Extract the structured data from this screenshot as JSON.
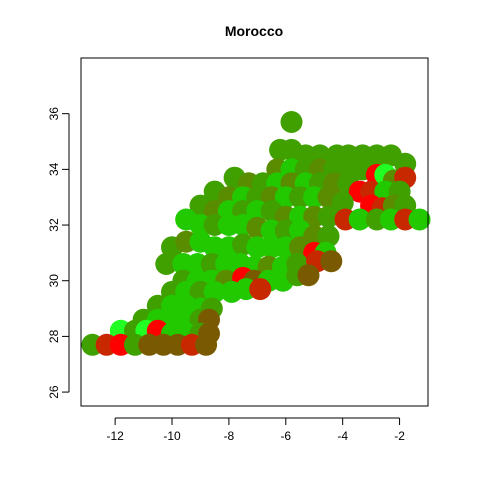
{
  "chart_data": {
    "type": "scatter",
    "title": "Morocco",
    "xlabel": "",
    "ylabel": "",
    "xlim": [
      -13.2,
      -1.0
    ],
    "ylim": [
      25.5,
      38.0
    ],
    "x_ticks": [
      -12,
      -10,
      -8,
      -6,
      -4,
      -2
    ],
    "y_ticks": [
      26,
      28,
      30,
      32,
      34,
      36
    ],
    "grid": false,
    "point_shape": "filled circle",
    "colors": {
      "red": "#ff0000",
      "dark_red": "#c82800",
      "brown": "#7a5a00",
      "olive": "#5a8c00",
      "green": "#3fa000",
      "bright_green": "#22c800",
      "lime": "#22ff22"
    },
    "points": [
      {
        "x": -5.8,
        "y": 35.7,
        "c": "green"
      },
      {
        "x": -6.2,
        "y": 34.7,
        "c": "green"
      },
      {
        "x": -5.8,
        "y": 34.7,
        "c": "green"
      },
      {
        "x": -5.3,
        "y": 34.5,
        "c": "green"
      },
      {
        "x": -4.8,
        "y": 34.5,
        "c": "green"
      },
      {
        "x": -4.2,
        "y": 34.5,
        "c": "green"
      },
      {
        "x": -3.8,
        "y": 34.5,
        "c": "green"
      },
      {
        "x": -3.3,
        "y": 34.5,
        "c": "green"
      },
      {
        "x": -2.8,
        "y": 34.5,
        "c": "green"
      },
      {
        "x": -2.3,
        "y": 34.5,
        "c": "green"
      },
      {
        "x": -1.8,
        "y": 34.2,
        "c": "green"
      },
      {
        "x": -6.3,
        "y": 34.0,
        "c": "olive"
      },
      {
        "x": -5.8,
        "y": 34.0,
        "c": "bright_green"
      },
      {
        "x": -5.3,
        "y": 34.0,
        "c": "green"
      },
      {
        "x": -4.8,
        "y": 34.0,
        "c": "olive"
      },
      {
        "x": -4.3,
        "y": 34.0,
        "c": "green"
      },
      {
        "x": -3.8,
        "y": 34.0,
        "c": "green"
      },
      {
        "x": -3.3,
        "y": 34.0,
        "c": "green"
      },
      {
        "x": -2.8,
        "y": 33.8,
        "c": "red"
      },
      {
        "x": -2.5,
        "y": 33.8,
        "c": "lime"
      },
      {
        "x": -2.2,
        "y": 33.6,
        "c": "olive"
      },
      {
        "x": -1.8,
        "y": 33.7,
        "c": "dark_red"
      },
      {
        "x": -7.8,
        "y": 33.7,
        "c": "green"
      },
      {
        "x": -7.3,
        "y": 33.5,
        "c": "olive"
      },
      {
        "x": -6.8,
        "y": 33.5,
        "c": "green"
      },
      {
        "x": -6.3,
        "y": 33.5,
        "c": "bright_green"
      },
      {
        "x": -5.8,
        "y": 33.5,
        "c": "olive"
      },
      {
        "x": -5.3,
        "y": 33.5,
        "c": "bright_green"
      },
      {
        "x": -4.8,
        "y": 33.5,
        "c": "green"
      },
      {
        "x": -4.3,
        "y": 33.5,
        "c": "olive"
      },
      {
        "x": -3.8,
        "y": 33.5,
        "c": "green"
      },
      {
        "x": -3.4,
        "y": 33.2,
        "c": "red"
      },
      {
        "x": -3.0,
        "y": 33.2,
        "c": "dark_red"
      },
      {
        "x": -2.5,
        "y": 33.2,
        "c": "bright_green"
      },
      {
        "x": -2.0,
        "y": 33.2,
        "c": "green"
      },
      {
        "x": -8.5,
        "y": 33.2,
        "c": "green"
      },
      {
        "x": -8.0,
        "y": 33.0,
        "c": "olive"
      },
      {
        "x": -7.5,
        "y": 33.0,
        "c": "bright_green"
      },
      {
        "x": -7.0,
        "y": 33.0,
        "c": "green"
      },
      {
        "x": -6.5,
        "y": 33.0,
        "c": "olive"
      },
      {
        "x": -6.0,
        "y": 33.0,
        "c": "bright_green"
      },
      {
        "x": -5.5,
        "y": 33.0,
        "c": "green"
      },
      {
        "x": -5.0,
        "y": 33.0,
        "c": "bright_green"
      },
      {
        "x": -4.5,
        "y": 33.0,
        "c": "olive"
      },
      {
        "x": -4.0,
        "y": 32.8,
        "c": "green"
      },
      {
        "x": -3.0,
        "y": 32.7,
        "c": "red"
      },
      {
        "x": -2.6,
        "y": 32.6,
        "c": "dark_red"
      },
      {
        "x": -2.2,
        "y": 32.7,
        "c": "olive"
      },
      {
        "x": -1.8,
        "y": 32.7,
        "c": "green"
      },
      {
        "x": -9.0,
        "y": 32.7,
        "c": "green"
      },
      {
        "x": -8.5,
        "y": 32.5,
        "c": "olive"
      },
      {
        "x": -8.0,
        "y": 32.5,
        "c": "bright_green"
      },
      {
        "x": -7.5,
        "y": 32.5,
        "c": "green"
      },
      {
        "x": -7.0,
        "y": 32.5,
        "c": "bright_green"
      },
      {
        "x": -6.5,
        "y": 32.5,
        "c": "green"
      },
      {
        "x": -6.0,
        "y": 32.3,
        "c": "olive"
      },
      {
        "x": -5.5,
        "y": 32.3,
        "c": "bright_green"
      },
      {
        "x": -5.0,
        "y": 32.3,
        "c": "olive"
      },
      {
        "x": -4.5,
        "y": 32.3,
        "c": "green"
      },
      {
        "x": -3.9,
        "y": 32.2,
        "c": "dark_red"
      },
      {
        "x": -3.4,
        "y": 32.2,
        "c": "bright_green"
      },
      {
        "x": -2.8,
        "y": 32.2,
        "c": "green"
      },
      {
        "x": -2.3,
        "y": 32.2,
        "c": "bright_green"
      },
      {
        "x": -1.8,
        "y": 32.2,
        "c": "dark_red"
      },
      {
        "x": -1.3,
        "y": 32.2,
        "c": "bright_green"
      },
      {
        "x": -9.5,
        "y": 32.2,
        "c": "bright_green"
      },
      {
        "x": -9.0,
        "y": 32.0,
        "c": "bright_green"
      },
      {
        "x": -8.5,
        "y": 32.0,
        "c": "green"
      },
      {
        "x": -8.0,
        "y": 32.0,
        "c": "bright_green"
      },
      {
        "x": -7.5,
        "y": 32.0,
        "c": "bright_green"
      },
      {
        "x": -7.0,
        "y": 31.9,
        "c": "olive"
      },
      {
        "x": -6.5,
        "y": 31.8,
        "c": "bright_green"
      },
      {
        "x": -6.0,
        "y": 31.8,
        "c": "green"
      },
      {
        "x": -5.5,
        "y": 31.8,
        "c": "bright_green"
      },
      {
        "x": -5.0,
        "y": 31.6,
        "c": "olive"
      },
      {
        "x": -4.5,
        "y": 31.6,
        "c": "green"
      },
      {
        "x": -10.0,
        "y": 31.2,
        "c": "green"
      },
      {
        "x": -9.5,
        "y": 31.4,
        "c": "olive"
      },
      {
        "x": -9.0,
        "y": 31.4,
        "c": "bright_green"
      },
      {
        "x": -8.5,
        "y": 31.2,
        "c": "bright_green"
      },
      {
        "x": -8.0,
        "y": 31.2,
        "c": "bright_green"
      },
      {
        "x": -7.5,
        "y": 31.3,
        "c": "green"
      },
      {
        "x": -7.0,
        "y": 31.2,
        "c": "bright_green"
      },
      {
        "x": -6.5,
        "y": 31.2,
        "c": "bright_green"
      },
      {
        "x": -6.0,
        "y": 31.2,
        "c": "bright_green"
      },
      {
        "x": -5.5,
        "y": 31.2,
        "c": "olive"
      },
      {
        "x": -5.0,
        "y": 31.0,
        "c": "red"
      },
      {
        "x": -4.6,
        "y": 31.0,
        "c": "bright_green"
      },
      {
        "x": -10.2,
        "y": 30.6,
        "c": "green"
      },
      {
        "x": -9.6,
        "y": 30.6,
        "c": "bright_green"
      },
      {
        "x": -9.1,
        "y": 30.6,
        "c": "bright_green"
      },
      {
        "x": -8.6,
        "y": 30.6,
        "c": "green"
      },
      {
        "x": -8.1,
        "y": 30.6,
        "c": "bright_green"
      },
      {
        "x": -7.6,
        "y": 30.6,
        "c": "bright_green"
      },
      {
        "x": -7.1,
        "y": 30.5,
        "c": "bright_green"
      },
      {
        "x": -6.6,
        "y": 30.5,
        "c": "olive"
      },
      {
        "x": -6.1,
        "y": 30.5,
        "c": "bright_green"
      },
      {
        "x": -5.6,
        "y": 30.6,
        "c": "green"
      },
      {
        "x": -4.9,
        "y": 30.7,
        "c": "dark_red"
      },
      {
        "x": -4.4,
        "y": 30.7,
        "c": "brown"
      },
      {
        "x": -9.6,
        "y": 30.0,
        "c": "green"
      },
      {
        "x": -9.1,
        "y": 30.0,
        "c": "bright_green"
      },
      {
        "x": -8.6,
        "y": 30.0,
        "c": "bright_green"
      },
      {
        "x": -8.1,
        "y": 30.0,
        "c": "olive"
      },
      {
        "x": -7.5,
        "y": 30.1,
        "c": "red"
      },
      {
        "x": -7.1,
        "y": 30.0,
        "c": "brown"
      },
      {
        "x": -6.6,
        "y": 30.0,
        "c": "bright_green"
      },
      {
        "x": -6.1,
        "y": 30.0,
        "c": "bright_green"
      },
      {
        "x": -5.6,
        "y": 30.2,
        "c": "green"
      },
      {
        "x": -5.2,
        "y": 30.2,
        "c": "brown"
      },
      {
        "x": -10.0,
        "y": 29.6,
        "c": "green"
      },
      {
        "x": -9.5,
        "y": 29.6,
        "c": "bright_green"
      },
      {
        "x": -9.0,
        "y": 29.6,
        "c": "green"
      },
      {
        "x": -8.5,
        "y": 29.6,
        "c": "bright_green"
      },
      {
        "x": -7.9,
        "y": 29.6,
        "c": "bright_green"
      },
      {
        "x": -7.4,
        "y": 29.7,
        "c": "bright_green"
      },
      {
        "x": -6.9,
        "y": 29.7,
        "c": "dark_red"
      },
      {
        "x": -10.5,
        "y": 29.1,
        "c": "green"
      },
      {
        "x": -10.0,
        "y": 29.1,
        "c": "bright_green"
      },
      {
        "x": -9.5,
        "y": 29.1,
        "c": "bright_green"
      },
      {
        "x": -9.0,
        "y": 29.0,
        "c": "bright_green"
      },
      {
        "x": -8.6,
        "y": 29.0,
        "c": "green"
      },
      {
        "x": -11.0,
        "y": 28.6,
        "c": "green"
      },
      {
        "x": -10.5,
        "y": 28.6,
        "c": "bright_green"
      },
      {
        "x": -10.0,
        "y": 28.6,
        "c": "bright_green"
      },
      {
        "x": -9.5,
        "y": 28.6,
        "c": "bright_green"
      },
      {
        "x": -9.0,
        "y": 28.6,
        "c": "green"
      },
      {
        "x": -8.7,
        "y": 28.6,
        "c": "brown"
      },
      {
        "x": -11.8,
        "y": 28.2,
        "c": "lime"
      },
      {
        "x": -11.3,
        "y": 28.2,
        "c": "green"
      },
      {
        "x": -10.9,
        "y": 28.2,
        "c": "lime"
      },
      {
        "x": -10.5,
        "y": 28.2,
        "c": "red"
      },
      {
        "x": -10.0,
        "y": 28.1,
        "c": "bright_green"
      },
      {
        "x": -9.5,
        "y": 28.1,
        "c": "bright_green"
      },
      {
        "x": -9.0,
        "y": 28.1,
        "c": "green"
      },
      {
        "x": -8.7,
        "y": 28.1,
        "c": "brown"
      },
      {
        "x": -12.8,
        "y": 27.7,
        "c": "green"
      },
      {
        "x": -12.3,
        "y": 27.7,
        "c": "dark_red"
      },
      {
        "x": -11.8,
        "y": 27.7,
        "c": "red"
      },
      {
        "x": -11.3,
        "y": 27.7,
        "c": "green"
      },
      {
        "x": -10.8,
        "y": 27.7,
        "c": "brown"
      },
      {
        "x": -10.3,
        "y": 27.7,
        "c": "brown"
      },
      {
        "x": -9.8,
        "y": 27.7,
        "c": "brown"
      },
      {
        "x": -9.3,
        "y": 27.7,
        "c": "dark_red"
      },
      {
        "x": -8.8,
        "y": 27.7,
        "c": "brown"
      }
    ]
  }
}
